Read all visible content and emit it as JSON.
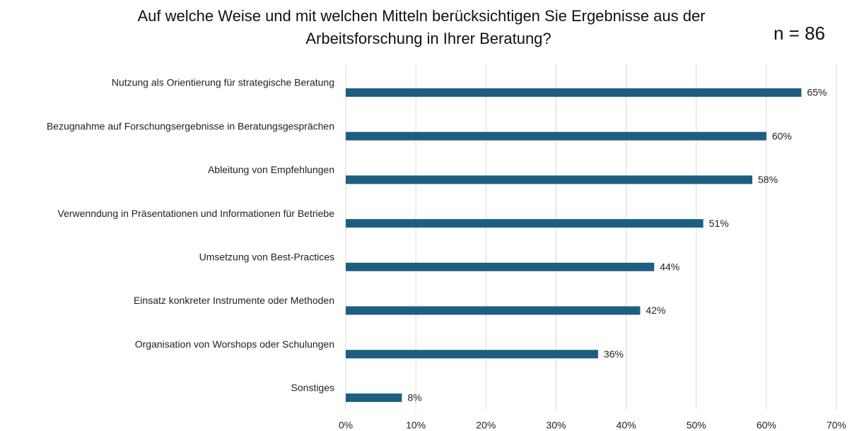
{
  "chart_data": {
    "type": "hbar",
    "title": [
      "Auf welche Weise und mit welchen Mitteln berücksichtigen Sie Ergebnisse aus der",
      "Arbeitsforschung in Ihrer Beratung?"
    ],
    "annotation": "n = 86",
    "categories": [
      "Nutzung als Orientierung für strategische Beratung",
      "Bezugnahme auf Forschungsergebnisse in Beratungsgesprächen",
      "Ableitung von Empfehlungen",
      "Verwenndung in Präsentationen und Informationen für Betriebe",
      "Umsetzung von Best-Practices",
      "Einsatz konkreter Instrumente oder Methoden",
      "Organisation von Worshops oder Schulungen",
      "Sonstiges"
    ],
    "values": [
      65,
      60,
      58,
      51,
      44,
      42,
      36,
      8
    ],
    "value_labels": [
      "65%",
      "60%",
      "58%",
      "51%",
      "44%",
      "42%",
      "36%",
      "8%"
    ],
    "color": "#1d5f80",
    "xlim": [
      0,
      70
    ],
    "xticks": [
      {
        "value": 0,
        "label": "0%"
      },
      {
        "value": 10,
        "label": "10%"
      },
      {
        "value": 20,
        "label": "20%"
      },
      {
        "value": 30,
        "label": "30%"
      },
      {
        "value": 40,
        "label": "40%"
      },
      {
        "value": 50,
        "label": "50%"
      },
      {
        "value": 60,
        "label": "60%"
      },
      {
        "value": 70,
        "label": "70%"
      }
    ],
    "grid": true
  }
}
